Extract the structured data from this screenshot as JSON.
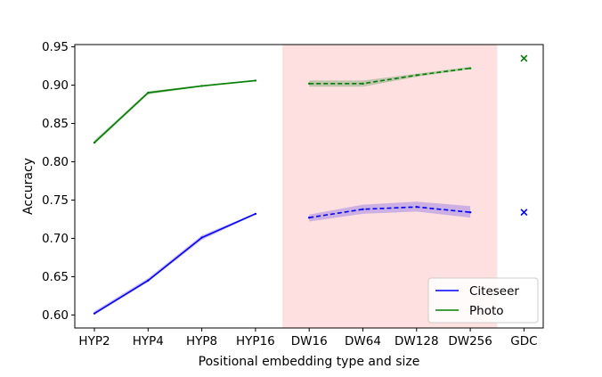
{
  "chart_data": {
    "type": "line",
    "xlabel": "Positional embedding type and size",
    "ylabel": "Accuracy",
    "categories": [
      "HYP2",
      "HYP4",
      "HYP8",
      "HYP16",
      "DW16",
      "DW64",
      "DW128",
      "DW256",
      "GDC"
    ],
    "ylim": [
      0.583,
      0.953
    ],
    "yticks": [
      "0.60",
      "0.65",
      "0.70",
      "0.75",
      "0.80",
      "0.85",
      "0.90",
      "0.95"
    ],
    "highlight_region": {
      "from_category": "DW16",
      "to_category": "DW256",
      "color": "#ffe0e0"
    },
    "grid": false,
    "legend_position": "bottom-right",
    "series": [
      {
        "name": "Citeseer",
        "color": "#0000ff",
        "band_color": "#9b7fe6",
        "hyp": {
          "categories": [
            "HYP2",
            "HYP4",
            "HYP8",
            "HYP16"
          ],
          "values": [
            0.602,
            0.645,
            0.701,
            0.732
          ],
          "lower": [
            0.6,
            0.643,
            0.698,
            0.731
          ],
          "upper": [
            0.605,
            0.648,
            0.704,
            0.733
          ]
        },
        "dw": {
          "categories": [
            "DW16",
            "DW64",
            "DW128",
            "DW256"
          ],
          "values": [
            0.727,
            0.738,
            0.741,
            0.734
          ],
          "lower": [
            0.722,
            0.732,
            0.735,
            0.727
          ],
          "upper": [
            0.731,
            0.744,
            0.748,
            0.742
          ]
        },
        "gdc": 0.734
      },
      {
        "name": "Photo",
        "color": "#008000",
        "band_color": "#7fa878",
        "hyp": {
          "categories": [
            "HYP2",
            "HYP4",
            "HYP8",
            "HYP16"
          ],
          "values": [
            0.825,
            0.89,
            0.899,
            0.906
          ],
          "lower": [
            0.823,
            0.888,
            0.898,
            0.905
          ],
          "upper": [
            0.828,
            0.892,
            0.9,
            0.907
          ]
        },
        "dw": {
          "categories": [
            "DW16",
            "DW64",
            "DW128",
            "DW256"
          ],
          "values": [
            0.902,
            0.902,
            0.913,
            0.922
          ],
          "lower": [
            0.898,
            0.898,
            0.911,
            0.921
          ],
          "upper": [
            0.906,
            0.906,
            0.915,
            0.924
          ]
        },
        "gdc": 0.935
      }
    ]
  }
}
